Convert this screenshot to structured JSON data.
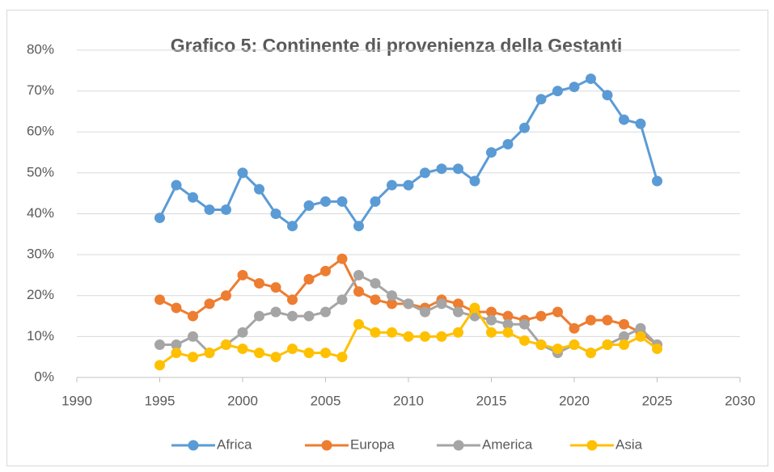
{
  "chart_data": {
    "type": "line",
    "title": "Grafico 5: Continente di provenienza della Gestanti",
    "x": [
      1995,
      1996,
      1997,
      1998,
      1999,
      2000,
      2001,
      2002,
      2003,
      2004,
      2005,
      2006,
      2007,
      2008,
      2009,
      2010,
      2011,
      2012,
      2013,
      2014,
      2015,
      2016,
      2017,
      2018,
      2019,
      2020,
      2021,
      2022,
      2023,
      2024,
      2025
    ],
    "series": [
      {
        "name": "Africa",
        "color": "#5b9bd5",
        "values": [
          39,
          47,
          44,
          41,
          41,
          50,
          46,
          40,
          37,
          42,
          43,
          43,
          37,
          43,
          47,
          47,
          50,
          51,
          51,
          48,
          55,
          57,
          61,
          68,
          70,
          71,
          73,
          69,
          63,
          62,
          48
        ]
      },
      {
        "name": "Europa",
        "color": "#ed7d31",
        "values": [
          19,
          17,
          15,
          18,
          20,
          25,
          23,
          22,
          19,
          24,
          26,
          29,
          21,
          19,
          18,
          18,
          17,
          19,
          18,
          16,
          16,
          15,
          14,
          15,
          16,
          12,
          14,
          14,
          13,
          11,
          8
        ]
      },
      {
        "name": "America",
        "color": "#a5a5a5",
        "values": [
          8,
          8,
          10,
          6,
          8,
          11,
          15,
          16,
          15,
          15,
          16,
          19,
          25,
          23,
          20,
          18,
          16,
          18,
          16,
          15,
          14,
          13,
          13,
          8,
          6,
          8,
          6,
          8,
          10,
          12,
          8
        ]
      },
      {
        "name": "Asia",
        "color": "#ffc000",
        "values": [
          3,
          6,
          5,
          6,
          8,
          7,
          6,
          5,
          7,
          6,
          6,
          5,
          13,
          11,
          11,
          10,
          10,
          10,
          11,
          17,
          11,
          11,
          9,
          8,
          7,
          8,
          6,
          8,
          8,
          10,
          7
        ]
      }
    ],
    "xlim": [
      1990,
      2030
    ],
    "xticks": [
      1990,
      1995,
      2000,
      2005,
      2010,
      2015,
      2020,
      2025,
      2030
    ],
    "ylim": [
      0,
      80
    ],
    "yticks": [
      {
        "value": 0,
        "label": "0%"
      },
      {
        "value": 10,
        "label": "10%"
      },
      {
        "value": 20,
        "label": "20%"
      },
      {
        "value": 30,
        "label": "30%"
      },
      {
        "value": 40,
        "label": "40%"
      },
      {
        "value": 50,
        "label": "50%"
      },
      {
        "value": 60,
        "label": "60%"
      },
      {
        "value": 70,
        "label": "70%"
      },
      {
        "value": 80,
        "label": "80%"
      }
    ],
    "grid": true,
    "legend": "bottom"
  }
}
